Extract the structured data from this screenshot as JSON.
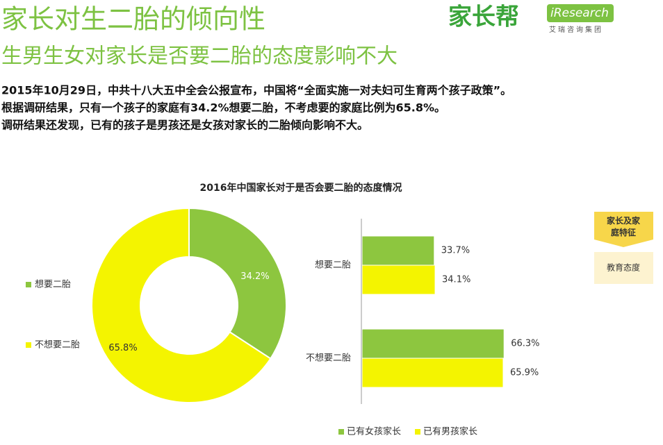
{
  "header": {
    "title": "家长对生二胎的倾向性",
    "subtitle": "生男生女对家长是否要二胎的态度影响不大",
    "paragraphs": [
      "2015年10月29日，中共十八大五中全会公报宣布，中国将“全面实施一对夫妇可生育两个孩子政策”。",
      "根据调研结果，只有一个孩子的家庭有34.2%想要二胎，不考虑要的家庭比例为65.8%。",
      "调研结果还发现，已有的孩子是男孩还是女孩对家长的二胎倾向影响不大。"
    ],
    "logo": "家长帮",
    "brand": "iResearch",
    "brand_sub": "艾瑞咨询集团"
  },
  "side_tabs": [
    "家长及家庭特征",
    "教育态度"
  ],
  "figure_title": "2016年中国家长对于是否会要二胎的态度情况",
  "chart_data": [
    {
      "type": "donut",
      "categories": [
        "想要二胎",
        "不想要二胎"
      ],
      "values": [
        34.2,
        65.8
      ],
      "value_labels": [
        "34.2%",
        "65.8%"
      ],
      "colors": [
        "#8dc63f",
        "#f4f400"
      ]
    },
    {
      "type": "hbar",
      "categories": [
        "想要二胎",
        "不想要二胎"
      ],
      "series": [
        {
          "name": "已有女孩家长",
          "color": "#8dc63f",
          "values": [
            33.7,
            66.3
          ],
          "value_labels": [
            "33.7%",
            "66.3%"
          ]
        },
        {
          "name": "已有男孩家长",
          "color": "#f4f400",
          "values": [
            34.1,
            65.9
          ],
          "value_labels": [
            "34.1%",
            "65.9%"
          ]
        }
      ]
    }
  ]
}
